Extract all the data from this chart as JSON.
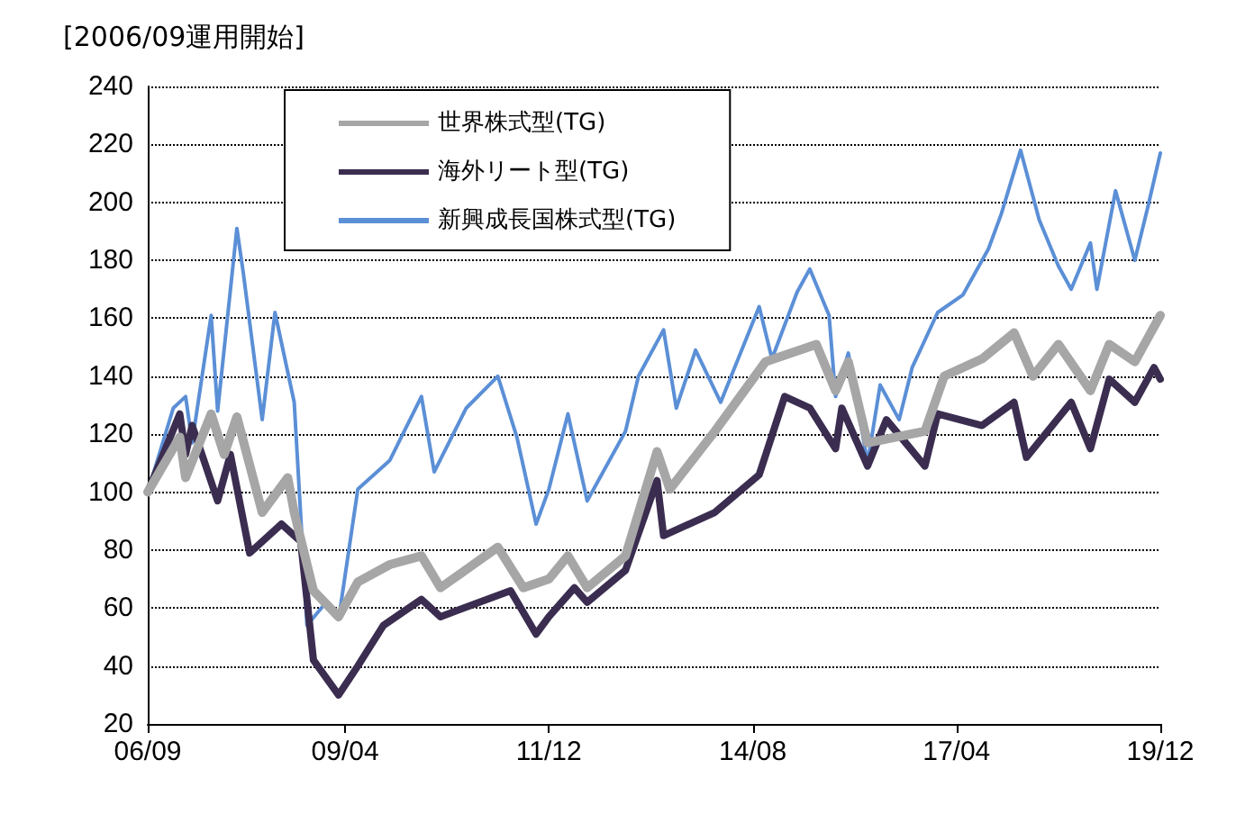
{
  "chart_data": {
    "type": "line",
    "title": "[2006/09運用開始]",
    "xlim": [
      "2006-09",
      "2019-12"
    ],
    "xticks": [
      {
        "value": "2006-09",
        "label": "06/09"
      },
      {
        "value": "2009-04",
        "label": "09/04"
      },
      {
        "value": "2011-12",
        "label": "11/12"
      },
      {
        "value": "2014-08",
        "label": "14/08"
      },
      {
        "value": "2017-04",
        "label": "17/04"
      },
      {
        "value": "2019-12",
        "label": "19/12"
      }
    ],
    "ylim": [
      20,
      240
    ],
    "yticks": [
      20,
      40,
      60,
      80,
      100,
      120,
      140,
      160,
      180,
      200,
      220,
      240
    ],
    "grid": "y",
    "legend": "top",
    "marker": "none",
    "series": [
      {
        "name": "世界株式型(TG)",
        "color": "#a6a6a6",
        "x": [
          "2006-09",
          "2007-02",
          "2007-03",
          "2007-07",
          "2007-09",
          "2007-11",
          "2008-03",
          "2008-07",
          "2008-08",
          "2008-11",
          "2009-03",
          "2009-06",
          "2009-11",
          "2010-04",
          "2010-07",
          "2011-04",
          "2011-08",
          "2011-12",
          "2012-03",
          "2012-06",
          "2012-12",
          "2013-05",
          "2013-07",
          "2014-02",
          "2014-10",
          "2015-06",
          "2015-09",
          "2015-11",
          "2016-02",
          "2016-11",
          "2017-02",
          "2017-08",
          "2018-01",
          "2018-04",
          "2018-08",
          "2019-01",
          "2019-04",
          "2019-08",
          "2019-12"
        ],
        "values": [
          100,
          119,
          105,
          127,
          113,
          126,
          93,
          105,
          93,
          66,
          57,
          69,
          75,
          78,
          67,
          81,
          67,
          70,
          78,
          67,
          78,
          114,
          101,
          121,
          145,
          151,
          135,
          145,
          117,
          121,
          140,
          146,
          155,
          140,
          151,
          135,
          151,
          145,
          161
        ]
      },
      {
        "name": "海外リート型(TG)",
        "color": "#3b2d50",
        "x": [
          "2006-09",
          "2007-02",
          "2007-03",
          "2007-04",
          "2007-08",
          "2007-10",
          "2008-01",
          "2008-06",
          "2008-09",
          "2008-11",
          "2009-03",
          "2009-06",
          "2009-10",
          "2010-04",
          "2010-07",
          "2011-06",
          "2011-10",
          "2011-12",
          "2012-04",
          "2012-06",
          "2012-12",
          "2013-05",
          "2013-06",
          "2014-02",
          "2014-09",
          "2015-01",
          "2015-05",
          "2015-09",
          "2015-10",
          "2016-02",
          "2016-05",
          "2016-11",
          "2017-01",
          "2017-08",
          "2018-01",
          "2018-03",
          "2018-10",
          "2019-01",
          "2019-04",
          "2019-08",
          "2019-11",
          "2019-12"
        ],
        "values": [
          100,
          127,
          113,
          123,
          97,
          113,
          79,
          89,
          83,
          42,
          30,
          40,
          54,
          63,
          57,
          66,
          51,
          57,
          67,
          62,
          73,
          104,
          85,
          93,
          106,
          133,
          129,
          115,
          129,
          109,
          125,
          109,
          127,
          123,
          131,
          112,
          131,
          115,
          139,
          131,
          143,
          139
        ]
      },
      {
        "name": "新興成長国株式型(TG)",
        "color": "#5b8fd6",
        "x": [
          "2006-09",
          "2007-01",
          "2007-03",
          "2007-04",
          "2007-07",
          "2007-08",
          "2007-11",
          "2007-12",
          "2008-03",
          "2008-05",
          "2008-08",
          "2008-10",
          "2009-01",
          "2009-03",
          "2009-06",
          "2009-11",
          "2010-04",
          "2010-06",
          "2010-11",
          "2011-04",
          "2011-07",
          "2011-10",
          "2011-12",
          "2012-03",
          "2012-06",
          "2012-12",
          "2013-02",
          "2013-06",
          "2013-08",
          "2013-11",
          "2014-03",
          "2014-09",
          "2014-11",
          "2015-03",
          "2015-05",
          "2015-08",
          "2015-09",
          "2015-11",
          "2016-02",
          "2016-04",
          "2016-07",
          "2016-09",
          "2017-01",
          "2017-05",
          "2017-09",
          "2017-11",
          "2018-02",
          "2018-05",
          "2018-08",
          "2018-10",
          "2019-01",
          "2019-02",
          "2019-05",
          "2019-08",
          "2019-10",
          "2019-12"
        ],
        "values": [
          100,
          129,
          133,
          117,
          161,
          128,
          191,
          176,
          125,
          162,
          131,
          54,
          62,
          56,
          101,
          111,
          133,
          107,
          129,
          140,
          119,
          89,
          101,
          127,
          97,
          121,
          140,
          156,
          129,
          149,
          131,
          164,
          146,
          169,
          177,
          161,
          133,
          148,
          110,
          137,
          125,
          143,
          162,
          168,
          184,
          196,
          218,
          194,
          178,
          170,
          186,
          170,
          204,
          180,
          198,
          217
        ]
      }
    ]
  }
}
